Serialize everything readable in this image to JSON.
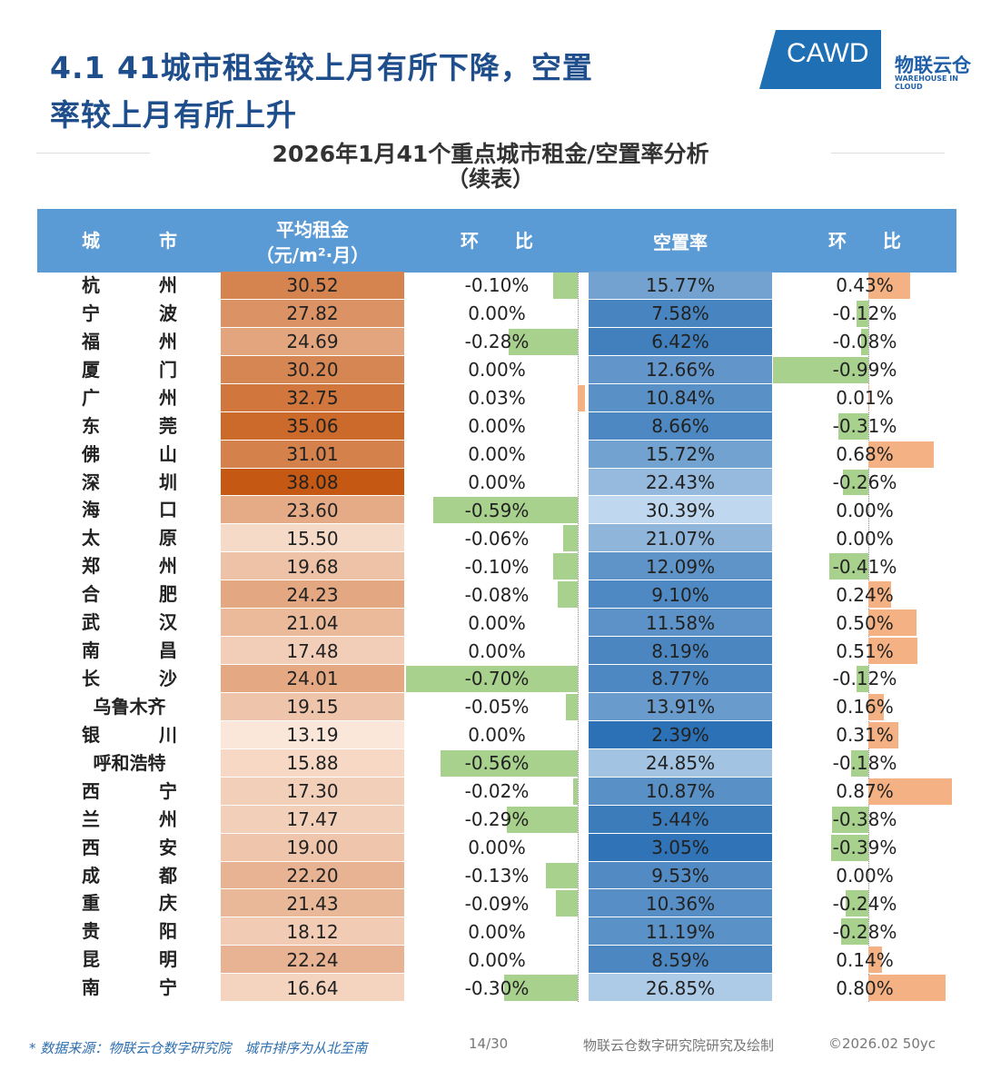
{
  "header": {
    "title_lines": [
      "4.1 41城市租金较上月有所下降，空置",
      "率较上月有所上升"
    ],
    "logo": {
      "brand": "CAWD",
      "name": "物联云仓",
      "tagline": "WAREHOUSE IN CLOUD"
    }
  },
  "table": {
    "title": "2026年1月41个重点城市租金/空置率分析",
    "subtitle": "（续表）",
    "columns": [
      [
        "城市"
      ],
      [
        "平均租金",
        "（元/m²·月）"
      ],
      [
        "环比"
      ],
      [
        "空置率"
      ],
      [
        "环比"
      ]
    ],
    "rows": [
      [
        "杭州",
        "30.52",
        "-0.10%",
        "15.77%",
        "0.43%"
      ],
      [
        "宁波",
        "27.82",
        "0.00%",
        "7.58%",
        "-0.12%"
      ],
      [
        "福州",
        "24.69",
        "-0.28%",
        "6.42%",
        "-0.08%"
      ],
      [
        "厦门",
        "30.20",
        "0.00%",
        "12.66%",
        "-0.99%"
      ],
      [
        "广州",
        "32.75",
        "0.03%",
        "10.84%",
        "0.01%"
      ],
      [
        "东莞",
        "35.06",
        "0.00%",
        "8.66%",
        "-0.31%"
      ],
      [
        "佛山",
        "31.01",
        "0.00%",
        "15.72%",
        "0.68%"
      ],
      [
        "深圳",
        "38.08",
        "0.00%",
        "22.43%",
        "-0.26%"
      ],
      [
        "海口",
        "23.60",
        "-0.59%",
        "30.39%",
        "0.00%"
      ],
      [
        "太原",
        "15.50",
        "-0.06%",
        "21.07%",
        "0.00%"
      ],
      [
        "郑州",
        "19.68",
        "-0.10%",
        "12.09%",
        "-0.41%"
      ],
      [
        "合肥",
        "24.23",
        "-0.08%",
        "9.10%",
        "0.24%"
      ],
      [
        "武汉",
        "21.04",
        "0.00%",
        "11.58%",
        "0.50%"
      ],
      [
        "南昌",
        "17.48",
        "0.00%",
        "8.19%",
        "0.51%"
      ],
      [
        "长沙",
        "24.01",
        "-0.70%",
        "8.77%",
        "-0.12%"
      ],
      [
        "乌鲁木齐",
        "19.15",
        "-0.05%",
        "13.91%",
        "0.16%"
      ],
      [
        "银川",
        "13.19",
        "0.00%",
        "2.39%",
        "0.31%"
      ],
      [
        "呼和浩特",
        "15.88",
        "-0.56%",
        "24.85%",
        "-0.18%"
      ],
      [
        "西宁",
        "17.30",
        "-0.02%",
        "10.87%",
        "0.87%"
      ],
      [
        "兰州",
        "17.47",
        "-0.29%",
        "5.44%",
        "-0.38%"
      ],
      [
        "西安",
        "19.00",
        "0.00%",
        "3.05%",
        "-0.39%"
      ],
      [
        "成都",
        "22.20",
        "-0.13%",
        "9.53%",
        "0.00%"
      ],
      [
        "重庆",
        "21.43",
        "-0.09%",
        "10.36%",
        "-0.24%"
      ],
      [
        "贵阳",
        "18.12",
        "0.00%",
        "11.19%",
        "-0.28%"
      ],
      [
        "昆明",
        "22.24",
        "0.00%",
        "8.59%",
        "0.14%"
      ],
      [
        "南宁",
        "16.64",
        "-0.30%",
        "26.85%",
        "0.80%"
      ]
    ]
  },
  "footer": {
    "source": "* 数据来源：物联云仓数字研究院　城市排序为从北至南",
    "page": "14/30",
    "credit": "物联云仓数字研究院研究及绘制",
    "copyright": "©2026.02 50yc"
  }
}
